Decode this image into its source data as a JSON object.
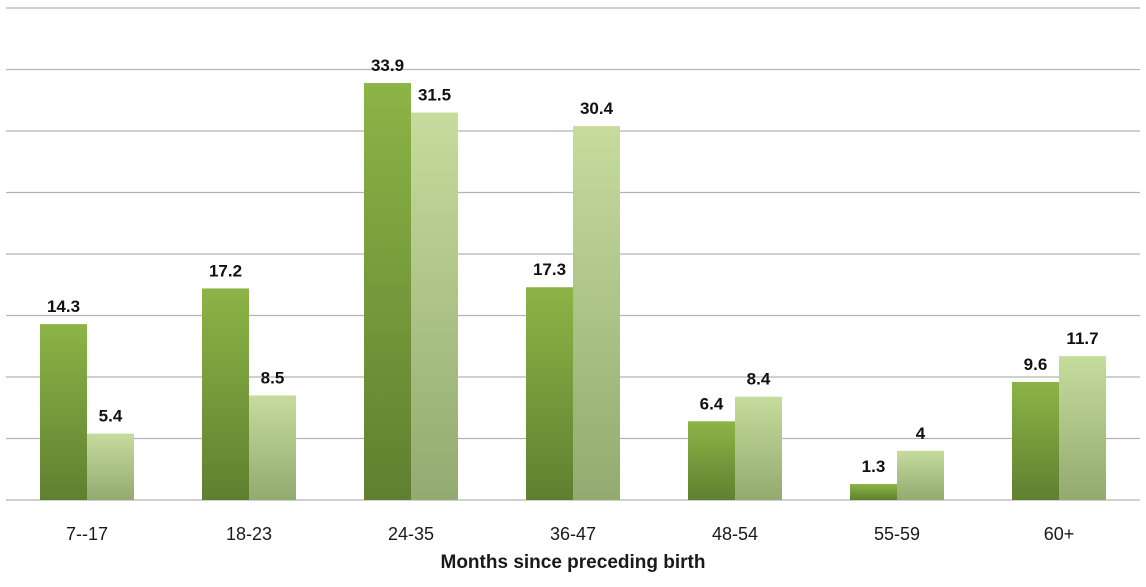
{
  "chart_data": {
    "type": "bar",
    "xlabel": "Months since preceding birth",
    "categories": [
      "7--17",
      "18-23",
      "24-35",
      "36-47",
      "48-54",
      "55-59",
      "60+"
    ],
    "series": [
      {
        "values": [
          14.3,
          17.2,
          33.9,
          17.3,
          6.4,
          1.3,
          9.6
        ]
      },
      {
        "values": [
          5.4,
          8.5,
          31.5,
          30.4,
          8.4,
          4,
          11.7
        ]
      }
    ],
    "ylim": [
      0,
      40
    ],
    "grid": true,
    "data_labels": true,
    "colors": {
      "series1_top": "#8cb446",
      "series1_bottom": "#5f8030",
      "series2_top": "#c6dc9d",
      "series2_bottom": "#93aa70",
      "grid": "#b3b3b3"
    }
  }
}
